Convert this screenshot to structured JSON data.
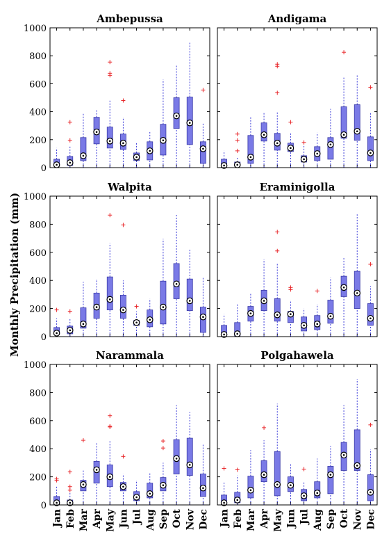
{
  "figure": {
    "ylabel": "Monthly Precipitation (mm)"
  },
  "chart_data": [
    {
      "type": "box",
      "title": "Ambepussa",
      "categories": [
        "Jan",
        "Feb",
        "Mar",
        "Apr",
        "May",
        "Jun",
        "Jul",
        "Aug",
        "Sep",
        "Oct",
        "Nov",
        "Dec"
      ],
      "ylim": [
        0,
        1000
      ],
      "yticks": [
        0,
        200,
        400,
        600,
        800,
        1000
      ],
      "boxes": [
        {
          "min": 0,
          "q1": 10,
          "median": 20,
          "q3": 60,
          "max": 140,
          "outliers": []
        },
        {
          "min": 0,
          "q1": 15,
          "median": 35,
          "q3": 80,
          "max": 150,
          "outliers": [
            195,
            325
          ]
        },
        {
          "min": 0,
          "q1": 50,
          "median": 85,
          "q3": 215,
          "max": 385,
          "outliers": []
        },
        {
          "min": 0,
          "q1": 170,
          "median": 255,
          "q3": 360,
          "max": 420,
          "outliers": []
        },
        {
          "min": 0,
          "q1": 140,
          "median": 190,
          "q3": 290,
          "max": 480,
          "outliers": [
            660,
            675,
            755
          ]
        },
        {
          "min": 0,
          "q1": 130,
          "median": 175,
          "q3": 240,
          "max": 360,
          "outliers": [
            480
          ]
        },
        {
          "min": 0,
          "q1": 50,
          "median": 75,
          "q3": 105,
          "max": 180,
          "outliers": []
        },
        {
          "min": 0,
          "q1": 55,
          "median": 120,
          "q3": 185,
          "max": 260,
          "outliers": []
        },
        {
          "min": 0,
          "q1": 90,
          "median": 195,
          "q3": 310,
          "max": 630,
          "outliers": []
        },
        {
          "min": 0,
          "q1": 280,
          "median": 370,
          "q3": 500,
          "max": 730,
          "outliers": []
        },
        {
          "min": 0,
          "q1": 165,
          "median": 320,
          "q3": 505,
          "max": 900,
          "outliers": []
        },
        {
          "min": 0,
          "q1": 30,
          "median": 135,
          "q3": 185,
          "max": 320,
          "outliers": [
            555
          ]
        }
      ]
    },
    {
      "type": "box",
      "title": "Andigama",
      "categories": [
        "Jan",
        "Feb",
        "Mar",
        "Apr",
        "May",
        "Jun",
        "Jul",
        "Aug",
        "Sep",
        "Oct",
        "Nov",
        "Dec"
      ],
      "ylim": [
        0,
        1000
      ],
      "yticks": [
        0,
        200,
        400,
        600,
        800,
        1000
      ],
      "boxes": [
        {
          "min": 0,
          "q1": 5,
          "median": 15,
          "q3": 60,
          "max": 120,
          "outliers": []
        },
        {
          "min": 0,
          "q1": 10,
          "median": 20,
          "q3": 40,
          "max": 70,
          "outliers": [
            120,
            195,
            240
          ]
        },
        {
          "min": 0,
          "q1": 30,
          "median": 75,
          "q3": 230,
          "max": 360,
          "outliers": []
        },
        {
          "min": 0,
          "q1": 190,
          "median": 235,
          "q3": 320,
          "max": 400,
          "outliers": []
        },
        {
          "min": 0,
          "q1": 125,
          "median": 175,
          "q3": 245,
          "max": 400,
          "outliers": [
            535,
            725,
            740
          ]
        },
        {
          "min": 0,
          "q1": 115,
          "median": 140,
          "q3": 175,
          "max": 250,
          "outliers": [
            325
          ]
        },
        {
          "min": 0,
          "q1": 40,
          "median": 60,
          "q3": 85,
          "max": 160,
          "outliers": [
            180
          ]
        },
        {
          "min": 0,
          "q1": 50,
          "median": 100,
          "q3": 150,
          "max": 250,
          "outliers": []
        },
        {
          "min": 0,
          "q1": 60,
          "median": 165,
          "q3": 215,
          "max": 420,
          "outliers": []
        },
        {
          "min": 0,
          "q1": 210,
          "median": 235,
          "q3": 435,
          "max": 650,
          "outliers": [
            825
          ]
        },
        {
          "min": 0,
          "q1": 195,
          "median": 260,
          "q3": 450,
          "max": 660,
          "outliers": []
        },
        {
          "min": 0,
          "q1": 50,
          "median": 105,
          "q3": 220,
          "max": 390,
          "outliers": [
            575
          ]
        }
      ]
    },
    {
      "type": "box",
      "title": "Walpita",
      "categories": [
        "Jan",
        "Feb",
        "Mar",
        "Apr",
        "May",
        "Jun",
        "Jul",
        "Aug",
        "Sep",
        "Oct",
        "Nov",
        "Dec"
      ],
      "ylim": [
        0,
        1000
      ],
      "yticks": [
        0,
        200,
        400,
        600,
        800,
        1000
      ],
      "boxes": [
        {
          "min": 0,
          "q1": 15,
          "median": 25,
          "q3": 65,
          "max": 130,
          "outliers": [
            190
          ]
        },
        {
          "min": 0,
          "q1": 20,
          "median": 45,
          "q3": 75,
          "max": 130,
          "outliers": [
            180
          ]
        },
        {
          "min": 0,
          "q1": 60,
          "median": 90,
          "q3": 205,
          "max": 390,
          "outliers": []
        },
        {
          "min": 0,
          "q1": 130,
          "median": 210,
          "q3": 310,
          "max": 410,
          "outliers": []
        },
        {
          "min": 0,
          "q1": 190,
          "median": 265,
          "q3": 425,
          "max": 665,
          "outliers": [
            865
          ]
        },
        {
          "min": 0,
          "q1": 130,
          "median": 190,
          "q3": 295,
          "max": 400,
          "outliers": [
            795
          ]
        },
        {
          "min": 0,
          "q1": 80,
          "median": 100,
          "q3": 115,
          "max": 180,
          "outliers": [
            215
          ]
        },
        {
          "min": 0,
          "q1": 70,
          "median": 120,
          "q3": 190,
          "max": 270,
          "outliers": []
        },
        {
          "min": 0,
          "q1": 90,
          "median": 210,
          "q3": 395,
          "max": 695,
          "outliers": []
        },
        {
          "min": 0,
          "q1": 270,
          "median": 375,
          "q3": 520,
          "max": 870,
          "outliers": []
        },
        {
          "min": 0,
          "q1": 185,
          "median": 255,
          "q3": 410,
          "max": 625,
          "outliers": []
        },
        {
          "min": 0,
          "q1": 30,
          "median": 140,
          "q3": 210,
          "max": 420,
          "outliers": []
        }
      ]
    },
    {
      "type": "box",
      "title": "Eraminigolla",
      "categories": [
        "Jan",
        "Feb",
        "Mar",
        "Apr",
        "May",
        "Jun",
        "Jul",
        "Aug",
        "Sep",
        "Oct",
        "Nov",
        "Dec"
      ],
      "ylim": [
        0,
        1000
      ],
      "yticks": [
        0,
        200,
        400,
        600,
        800,
        1000
      ],
      "boxes": [
        {
          "min": 0,
          "q1": 5,
          "median": 15,
          "q3": 80,
          "max": 160,
          "outliers": []
        },
        {
          "min": 0,
          "q1": 5,
          "median": 20,
          "q3": 100,
          "max": 230,
          "outliers": []
        },
        {
          "min": 0,
          "q1": 110,
          "median": 165,
          "q3": 215,
          "max": 310,
          "outliers": []
        },
        {
          "min": 0,
          "q1": 185,
          "median": 255,
          "q3": 330,
          "max": 550,
          "outliers": []
        },
        {
          "min": 0,
          "q1": 110,
          "median": 155,
          "q3": 270,
          "max": 520,
          "outliers": [
            610,
            745
          ]
        },
        {
          "min": 0,
          "q1": 100,
          "median": 160,
          "q3": 180,
          "max": 260,
          "outliers": [
            335,
            350
          ]
        },
        {
          "min": 0,
          "q1": 40,
          "median": 80,
          "q3": 140,
          "max": 200,
          "outliers": []
        },
        {
          "min": 0,
          "q1": 50,
          "median": 90,
          "q3": 150,
          "max": 230,
          "outliers": [
            325
          ]
        },
        {
          "min": 0,
          "q1": 95,
          "median": 145,
          "q3": 260,
          "max": 420,
          "outliers": []
        },
        {
          "min": 0,
          "q1": 285,
          "median": 350,
          "q3": 430,
          "max": 565,
          "outliers": []
        },
        {
          "min": 0,
          "q1": 200,
          "median": 310,
          "q3": 465,
          "max": 870,
          "outliers": []
        },
        {
          "min": 0,
          "q1": 80,
          "median": 130,
          "q3": 235,
          "max": 360,
          "outliers": [
            515
          ]
        }
      ]
    },
    {
      "type": "box",
      "title": "Narammala",
      "categories": [
        "Jan",
        "Feb",
        "Mar",
        "Apr",
        "May",
        "Jun",
        "Jul",
        "Aug",
        "Sep",
        "Oct",
        "Nov",
        "Dec"
      ],
      "ylim": [
        0,
        1000
      ],
      "yticks": [
        0,
        200,
        400,
        600,
        800,
        1000
      ],
      "boxes": [
        {
          "min": 0,
          "q1": 5,
          "median": 15,
          "q3": 60,
          "max": 135,
          "outliers": [
            175,
            185
          ]
        },
        {
          "min": 0,
          "q1": 5,
          "median": 15,
          "q3": 35,
          "max": 90,
          "outliers": [
            105,
            130,
            235
          ]
        },
        {
          "min": 0,
          "q1": 100,
          "median": 145,
          "q3": 175,
          "max": 250,
          "outliers": [
            460
          ]
        },
        {
          "min": 0,
          "q1": 155,
          "median": 250,
          "q3": 310,
          "max": 440,
          "outliers": []
        },
        {
          "min": 0,
          "q1": 130,
          "median": 200,
          "q3": 285,
          "max": 460,
          "outliers": [
            555,
            560,
            635
          ]
        },
        {
          "min": 0,
          "q1": 100,
          "median": 130,
          "q3": 160,
          "max": 220,
          "outliers": [
            345
          ]
        },
        {
          "min": 0,
          "q1": 30,
          "median": 55,
          "q3": 95,
          "max": 175,
          "outliers": []
        },
        {
          "min": 0,
          "q1": 50,
          "median": 80,
          "q3": 155,
          "max": 225,
          "outliers": []
        },
        {
          "min": 0,
          "q1": 100,
          "median": 140,
          "q3": 195,
          "max": 300,
          "outliers": [
            405,
            455
          ]
        },
        {
          "min": 0,
          "q1": 220,
          "median": 330,
          "q3": 465,
          "max": 710,
          "outliers": []
        },
        {
          "min": 0,
          "q1": 210,
          "median": 285,
          "q3": 475,
          "max": 660,
          "outliers": []
        },
        {
          "min": 0,
          "q1": 60,
          "median": 120,
          "q3": 220,
          "max": 430,
          "outliers": []
        }
      ]
    },
    {
      "type": "box",
      "title": "Polgahawela",
      "categories": [
        "Jan",
        "Feb",
        "Mar",
        "Apr",
        "May",
        "Jun",
        "Jul",
        "Aug",
        "Sep",
        "Oct",
        "Nov",
        "Dec"
      ],
      "ylim": [
        0,
        1000
      ],
      "yticks": [
        0,
        200,
        400,
        600,
        800,
        1000
      ],
      "boxes": [
        {
          "min": 0,
          "q1": 5,
          "median": 15,
          "q3": 70,
          "max": 160,
          "outliers": [
            260
          ]
        },
        {
          "min": 0,
          "q1": 15,
          "median": 35,
          "q3": 90,
          "max": 210,
          "outliers": [
            250
          ]
        },
        {
          "min": 0,
          "q1": 50,
          "median": 105,
          "q3": 205,
          "max": 390,
          "outliers": []
        },
        {
          "min": 0,
          "q1": 165,
          "median": 215,
          "q3": 315,
          "max": 460,
          "outliers": [
            550
          ]
        },
        {
          "min": 0,
          "q1": 65,
          "median": 145,
          "q3": 380,
          "max": 720,
          "outliers": []
        },
        {
          "min": 0,
          "q1": 95,
          "median": 140,
          "q3": 200,
          "max": 290,
          "outliers": []
        },
        {
          "min": 0,
          "q1": 30,
          "median": 65,
          "q3": 110,
          "max": 160,
          "outliers": [
            255
          ]
        },
        {
          "min": 0,
          "q1": 50,
          "median": 85,
          "q3": 165,
          "max": 330,
          "outliers": []
        },
        {
          "min": 0,
          "q1": 80,
          "median": 215,
          "q3": 275,
          "max": 420,
          "outliers": []
        },
        {
          "min": 0,
          "q1": 245,
          "median": 355,
          "q3": 445,
          "max": 710,
          "outliers": []
        },
        {
          "min": 0,
          "q1": 245,
          "median": 280,
          "q3": 535,
          "max": 895,
          "outliers": []
        },
        {
          "min": 0,
          "q1": 30,
          "median": 90,
          "q3": 215,
          "max": 395,
          "outliers": [
            570
          ]
        }
      ]
    }
  ]
}
